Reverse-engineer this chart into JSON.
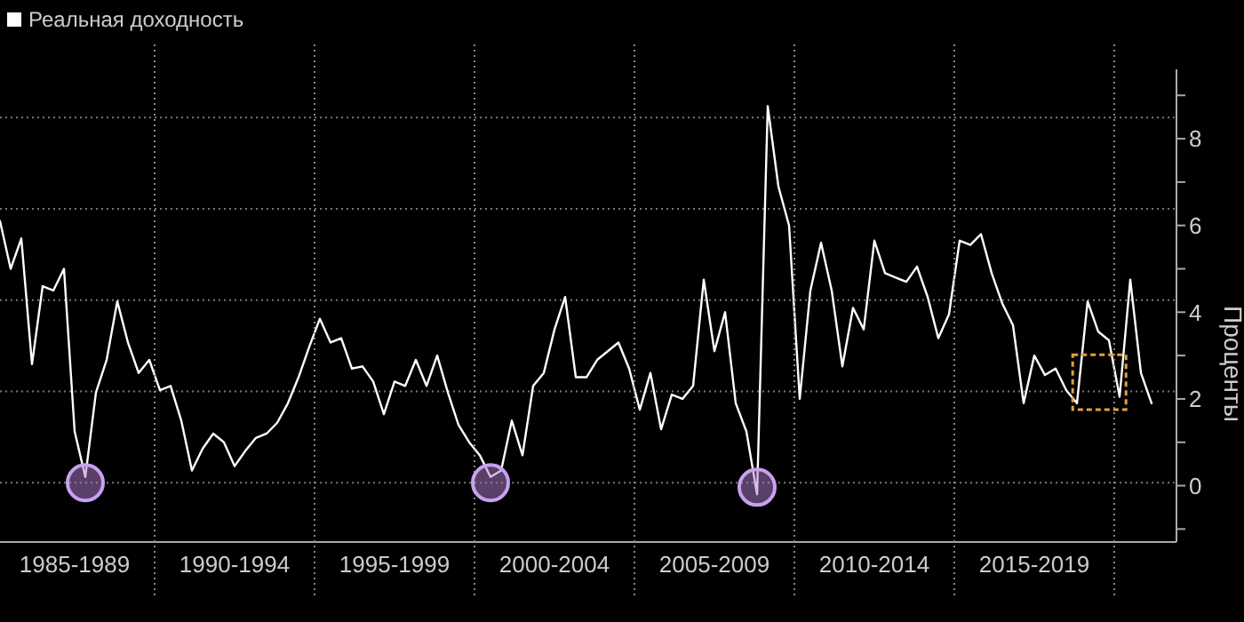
{
  "chart_data": {
    "type": "line",
    "ylabel": "Проценты",
    "legend": "top left",
    "grid": "y",
    "marker": "none",
    "line_style": "solid",
    "categories": [
      null,
      null,
      null,
      null,
      null,
      null,
      null,
      "1985-1989",
      null,
      null,
      null,
      null,
      null,
      null,
      null,
      null,
      null,
      null,
      null,
      null,
      null,
      null,
      "1990-1994",
      null,
      null,
      null,
      null,
      null,
      null,
      null,
      null,
      null,
      null,
      null,
      null,
      null,
      null,
      "1995-1999",
      null,
      null,
      null,
      null,
      null,
      null,
      null,
      null,
      null,
      null,
      null,
      null,
      null,
      null,
      "2000-2004",
      null,
      null,
      null,
      null,
      null,
      null,
      null,
      null,
      null,
      null,
      null,
      null,
      null,
      null,
      "2005-2009",
      null,
      null,
      null,
      null,
      null,
      null,
      null,
      null,
      null,
      null,
      null,
      null,
      null,
      null,
      "2010-2014",
      null,
      null,
      null,
      null,
      null,
      null,
      null,
      null,
      null,
      null,
      null,
      null,
      null,
      null,
      "2015-2019",
      null,
      null,
      null,
      null,
      null,
      null,
      null,
      null,
      null,
      null,
      null
    ],
    "ylim": [
      -1.3,
      9.6
    ],
    "yticks": [
      {
        "value": -1,
        "label": null
      },
      0,
      {
        "value": 1,
        "label": null
      },
      2,
      {
        "value": 3,
        "label": null
      },
      4,
      {
        "value": 5,
        "label": null
      },
      6,
      {
        "value": 7,
        "label": null
      },
      8,
      {
        "value": 9,
        "label": null
      }
    ],
    "series": [
      {
        "name": "Реальная доходность",
        "color": "#ffffff",
        "values": [
          6.1,
          5.0,
          5.7,
          2.8,
          4.6,
          4.5,
          5.0,
          1.25,
          0.2,
          2.15,
          2.9,
          4.25,
          3.3,
          2.6,
          2.9,
          2.2,
          2.3,
          1.5,
          0.35,
          0.85,
          1.2,
          1.0,
          0.45,
          0.8,
          1.1,
          1.2,
          1.45,
          1.9,
          2.5,
          3.2,
          3.85,
          3.3,
          3.4,
          2.7,
          2.75,
          2.4,
          1.65,
          2.4,
          2.3,
          2.9,
          2.3,
          3.0,
          2.15,
          1.4,
          1.0,
          0.7,
          0.2,
          0.35,
          1.5,
          0.7,
          2.3,
          2.6,
          3.6,
          4.35,
          2.5,
          2.5,
          2.9,
          3.1,
          3.3,
          2.7,
          1.75,
          2.6,
          1.3,
          2.1,
          2.0,
          2.3,
          4.75,
          3.1,
          4.0,
          1.9,
          1.25,
          -0.2,
          8.75,
          6.9,
          6.0,
          2.0,
          4.5,
          5.6,
          4.5,
          2.75,
          4.1,
          3.6,
          5.65,
          4.9,
          4.8,
          4.7,
          5.05,
          4.35,
          3.4,
          3.95,
          5.65,
          5.55,
          5.8,
          4.9,
          4.2,
          3.7,
          1.9,
          3.0,
          2.55,
          2.7,
          2.2,
          1.9,
          4.25,
          3.55,
          3.35,
          2.05,
          4.75,
          2.6,
          1.9
        ]
      }
    ]
  }
}
